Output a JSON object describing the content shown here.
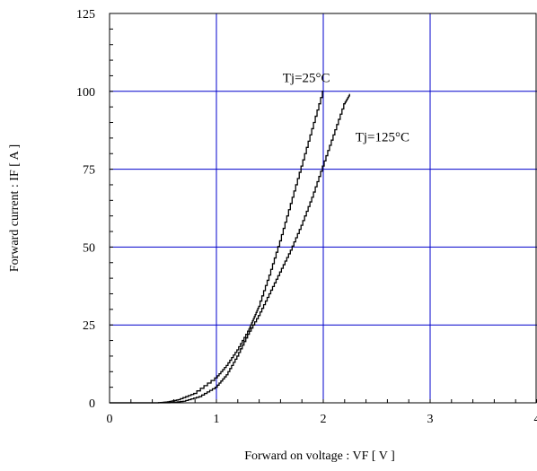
{
  "chart_data": {
    "type": "line",
    "xlabel": "Forward on voltage  :  VF  [ V ]",
    "ylabel": "Forward current  :  IF  [ A ]",
    "xlim": [
      0,
      4
    ],
    "ylim": [
      0,
      125
    ],
    "xticks": [
      0,
      1,
      2,
      3,
      4
    ],
    "yticks": [
      0,
      25,
      50,
      75,
      100,
      125
    ],
    "xtick_labels": [
      "0",
      "1",
      "2",
      "3",
      "4"
    ],
    "ytick_labels": [
      "0",
      "25",
      "50",
      "75",
      "100",
      "125"
    ],
    "grid": true,
    "legend": "none",
    "colors": {
      "grid": "#0000cc",
      "frame": "#000000",
      "series": "#000000"
    },
    "series": [
      {
        "x": [
          0.0,
          0.2,
          0.45,
          0.55,
          0.65,
          0.8,
          1.0,
          1.1,
          1.2,
          1.3,
          1.35,
          1.4,
          1.5,
          1.6,
          1.7,
          1.8,
          1.9,
          2.0
        ],
        "y": [
          0,
          0,
          0,
          0.3,
          1,
          3,
          8,
          12,
          17,
          23,
          27,
          31,
          41,
          52,
          64,
          76,
          88,
          100
        ]
      },
      {
        "x": [
          0.0,
          0.3,
          0.55,
          0.7,
          0.85,
          1.0,
          1.1,
          1.2,
          1.3,
          1.4,
          1.5,
          1.6,
          1.7,
          1.8,
          1.9,
          2.0,
          2.1,
          2.2,
          2.25
        ],
        "y": [
          0,
          0,
          0,
          0.5,
          2,
          5,
          9,
          15,
          22,
          28,
          35,
          42,
          49,
          57,
          66,
          76,
          86,
          96,
          99
        ]
      }
    ],
    "annotations": [
      {
        "text": "Tj=25°C",
        "x": 1.62,
        "y": 103.0
      },
      {
        "text": "Tj=125°C",
        "x": 2.3,
        "y": 84.0
      }
    ]
  }
}
